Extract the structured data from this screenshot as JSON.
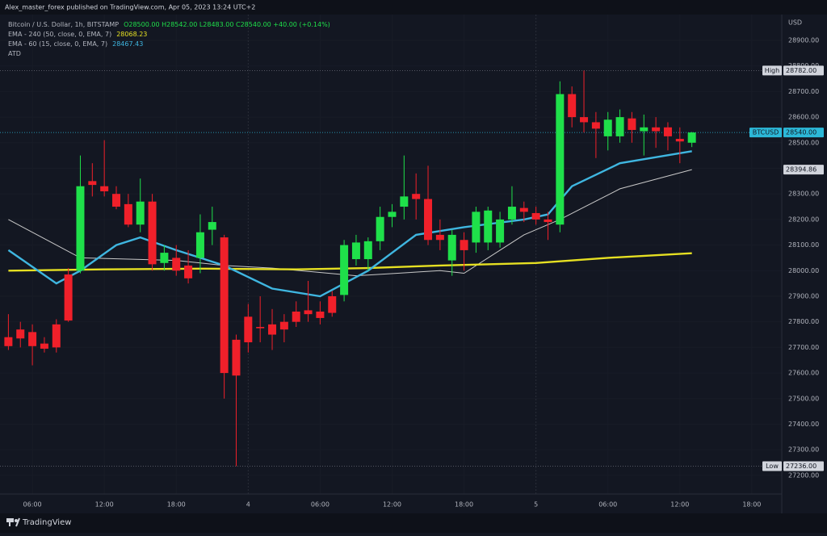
{
  "header": {
    "publisher": "Alex_master_forex published on TradingView.com, Apr 05, 2023 13:24 UTC+2"
  },
  "chart_data": {
    "type": "candlestick",
    "title": "Bitcoin / U.S. Dollar, 1h, BITSTAMP",
    "ohlc_label": "O28500.00 H28542.00 L28483.00 C28540.00 +40.00 (+0.14%)",
    "y_unit": "USD",
    "up_color": "#1fe04a",
    "down_color": "#f0202a",
    "x": [
      4,
      5,
      6,
      7,
      8,
      9,
      10,
      11,
      12,
      13,
      14,
      15,
      16,
      17,
      18,
      19,
      20,
      21,
      22,
      23,
      24,
      25,
      26,
      27,
      28,
      29,
      30,
      31,
      32,
      33,
      34,
      35,
      36,
      37,
      38,
      39,
      40,
      41,
      42,
      43,
      44,
      45,
      46,
      47,
      48,
      49,
      50,
      51,
      52,
      53,
      54,
      55,
      56,
      57,
      58,
      59,
      60,
      61
    ],
    "open": [
      27740,
      27770,
      27760,
      27715,
      27790,
      27985,
      28000,
      28350,
      28330,
      28300,
      28260,
      28180,
      28270,
      28030,
      28050,
      28020,
      28050,
      28160,
      28130,
      27730,
      27820,
      27780,
      27790,
      27800,
      27840,
      27845,
      27840,
      27900,
      27905,
      28045,
      28045,
      28115,
      28210,
      28250,
      28300,
      28280,
      28140,
      28040,
      28120,
      28110,
      28110,
      28110,
      28200,
      28245,
      28225,
      28200,
      28180,
      28690,
      28600,
      28580,
      28525,
      28525,
      28595,
      28545,
      28560,
      28560,
      28515,
      28500
    ],
    "high": [
      27830,
      27800,
      27790,
      27740,
      27810,
      28010,
      28450,
      28420,
      28510,
      28330,
      28300,
      28360,
      28300,
      28100,
      28100,
      28080,
      28220,
      28250,
      28140,
      27750,
      27870,
      27900,
      27850,
      27830,
      27880,
      27960,
      27880,
      27920,
      28120,
      28140,
      28130,
      28250,
      28260,
      28450,
      28380,
      28410,
      28200,
      28160,
      28150,
      28250,
      28250,
      28230,
      28330,
      28270,
      28250,
      28230,
      28740,
      28720,
      28782,
      28620,
      28620,
      28630,
      28620,
      28610,
      28600,
      28580,
      28560,
      28542
    ],
    "low": [
      27690,
      27700,
      27630,
      27680,
      27680,
      27800,
      27990,
      28290,
      28290,
      28240,
      28170,
      28150,
      28000,
      28000,
      27980,
      27950,
      27990,
      28100,
      27500,
      27236,
      27680,
      27720,
      27690,
      27720,
      27780,
      27800,
      27790,
      27820,
      27880,
      28020,
      28000,
      28080,
      28170,
      28200,
      28200,
      28100,
      28080,
      27980,
      28000,
      28070,
      28080,
      28090,
      28180,
      28190,
      28180,
      28120,
      28150,
      28560,
      28540,
      28440,
      28470,
      28500,
      28500,
      28450,
      28480,
      28470,
      28420,
      28483
    ],
    "close": [
      27705,
      27735,
      27705,
      27695,
      27700,
      27805,
      28330,
      28335,
      28310,
      28250,
      28180,
      28270,
      28025,
      28070,
      28000,
      27970,
      28150,
      28190,
      27600,
      27590,
      27720,
      27775,
      27750,
      27770,
      27800,
      27830,
      27815,
      27835,
      28100,
      28110,
      28115,
      28210,
      28230,
      28290,
      28280,
      28120,
      28120,
      28140,
      28080,
      28230,
      28235,
      28200,
      28250,
      28230,
      28200,
      28190,
      28690,
      28600,
      28580,
      28555,
      28590,
      28600,
      28550,
      28560,
      28545,
      28525,
      28505,
      28540
    ],
    "indicators": [
      {
        "name": "EMA - 240 (50, close, 0, EMA, 7)",
        "value_label": "28068.23",
        "color": "#e6e022",
        "x": [
          4,
          12,
          20,
          28,
          34,
          40,
          48,
          54,
          61
        ],
        "values": [
          28000,
          28005,
          28008,
          28005,
          28010,
          28020,
          28030,
          28050,
          28068
        ]
      },
      {
        "name": "EMA - 60 (15, close, 0, EMA, 7)",
        "value_label": "28467.43",
        "color": "#3fb6e0",
        "x": [
          4,
          8,
          10,
          13,
          15,
          18,
          22,
          26,
          30,
          34,
          38,
          42,
          47,
          49,
          51,
          55,
          61
        ],
        "values": [
          28080,
          27950,
          28000,
          28100,
          28130,
          28080,
          28020,
          27930,
          27900,
          28000,
          28140,
          28170,
          28200,
          28220,
          28330,
          28420,
          28467
        ]
      },
      {
        "name": "ATD",
        "color": "#c9c9c9",
        "x": [
          4,
          8,
          10,
          18,
          22,
          26,
          33,
          40,
          42,
          47,
          50,
          55,
          61
        ],
        "values": [
          28200,
          28100,
          28050,
          28040,
          28020,
          28010,
          27980,
          28000,
          27990,
          28140,
          28200,
          28320,
          28395
        ]
      }
    ],
    "price_markers": [
      {
        "label": "High",
        "value": 28782,
        "value_label": "28782.00",
        "color": "#d1d4dc"
      },
      {
        "label": "BTCUSD",
        "value": 28540,
        "value_label": "28540.00",
        "color": "#2cb8d8"
      },
      {
        "value": 28394.86,
        "color": "#d1d4dc"
      },
      {
        "label": "Low",
        "value": 27236,
        "value_label": "27236.00",
        "color": "#d1d4dc"
      }
    ],
    "xlim": [
      3.3,
      68.5
    ],
    "xticks": [
      {
        "value": 6,
        "label": "06:00"
      },
      {
        "value": 12,
        "label": "12:00"
      },
      {
        "value": 18,
        "label": "18:00"
      },
      {
        "value": 24,
        "label": "4"
      },
      {
        "value": 30,
        "label": "06:00"
      },
      {
        "value": 36,
        "label": "12:00"
      },
      {
        "value": 42,
        "label": "18:00"
      },
      {
        "value": 48,
        "label": "5"
      },
      {
        "value": 54,
        "label": "06:00"
      },
      {
        "value": 60,
        "label": "12:00"
      },
      {
        "value": 66,
        "label": "18:00"
      }
    ],
    "ylim": [
      27127,
      29001
    ],
    "yticks": [
      {
        "value": 27200,
        "label": "27200.00"
      },
      {
        "value": 27300,
        "label": "27300.00"
      },
      {
        "value": 27400,
        "label": "27400.00"
      },
      {
        "value": 27500,
        "label": "27500.00"
      },
      {
        "value": 27600,
        "label": "27600.00"
      },
      {
        "value": 27700,
        "label": "27700.00"
      },
      {
        "value": 27800,
        "label": "27800.00"
      },
      {
        "value": 27900,
        "label": "27900.00"
      },
      {
        "value": 28000,
        "label": "28000.00"
      },
      {
        "value": 28100,
        "label": "28100.00"
      },
      {
        "value": 28200,
        "label": "28200.00"
      },
      {
        "value": 28300,
        "label": "28300.00"
      },
      {
        "value": 28400,
        "label": "28400.00"
      },
      {
        "value": 28500,
        "label": "28500.00"
      },
      {
        "value": 28600,
        "label": "28600.00"
      },
      {
        "value": 28700,
        "label": "28700.00"
      },
      {
        "value": 28800,
        "label": "28800.00"
      },
      {
        "value": 28900,
        "label": "28900.00"
      }
    ]
  },
  "footer": {
    "brand": "TradingView"
  }
}
